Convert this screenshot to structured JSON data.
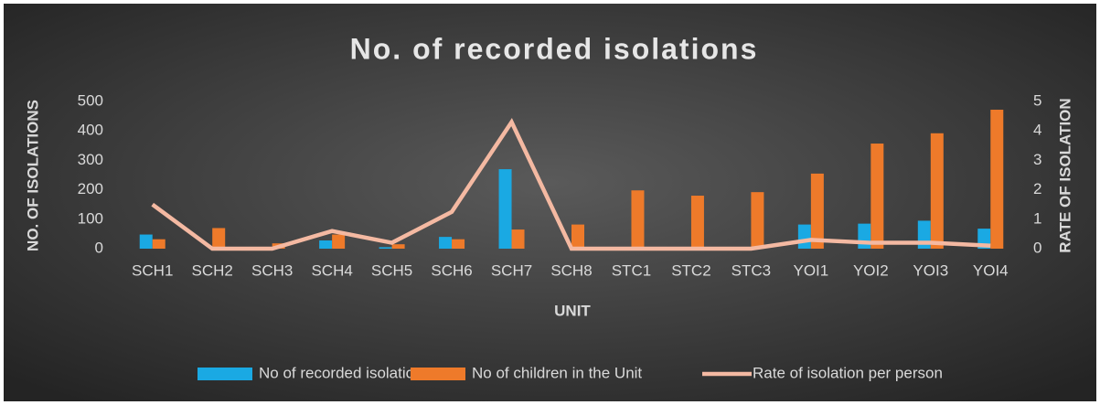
{
  "chart_data": {
    "type": "bar",
    "title": "No. of recorded isolations",
    "x_label": "UNIT",
    "y_label": "NO. OF ISOLATIONS",
    "y2_label": "RATE OF ISOLATION",
    "categories": [
      "SCH1",
      "SCH2",
      "SCH3",
      "SCH4",
      "SCH5",
      "SCH6",
      "SCH7",
      "SCH8",
      "STC1",
      "STC2",
      "STC3",
      "YOI1",
      "YOI2",
      "YOI3",
      "YOI4"
    ],
    "series": [
      {
        "name": "No of recorded isolations",
        "type": "bar",
        "color": "#1aa9e3",
        "values": [
          48,
          0,
          0,
          28,
          5,
          40,
          270,
          0,
          0,
          0,
          0,
          82,
          85,
          95,
          68
        ]
      },
      {
        "name": "No of children in the Unit",
        "type": "bar",
        "color": "#ee7a2a",
        "values": [
          32,
          70,
          18,
          48,
          15,
          32,
          65,
          82,
          198,
          180,
          192,
          255,
          357,
          392,
          472
        ]
      },
      {
        "name": "Rate of isolation per person",
        "type": "line",
        "axis": "y2",
        "color": "#f4b9a2",
        "values": [
          1.5,
          0,
          0,
          0.6,
          0.2,
          1.25,
          4.3,
          0,
          0,
          0,
          0,
          0.3,
          0.2,
          0.2,
          0.1
        ]
      }
    ],
    "ylim": [
      0,
      500
    ],
    "yticks": [
      0,
      100,
      200,
      300,
      400,
      500
    ],
    "y2lim": [
      0,
      5
    ],
    "y2ticks": [
      0,
      1,
      2,
      3,
      4,
      5
    ],
    "legend": "bottom"
  }
}
